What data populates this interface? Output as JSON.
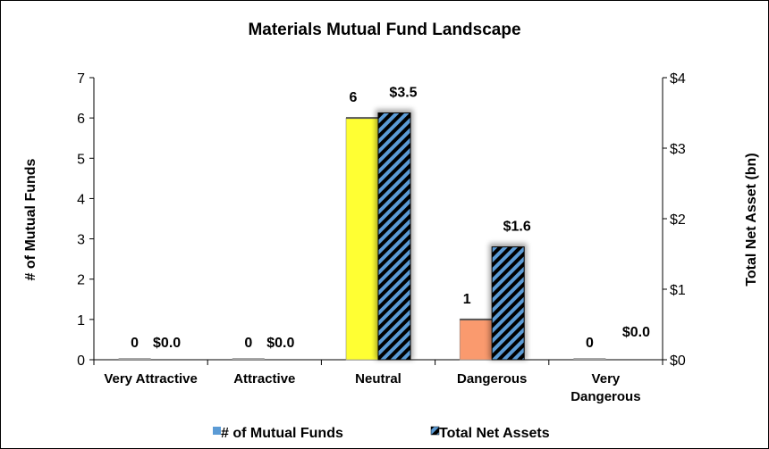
{
  "chart_data": {
    "type": "bar",
    "title": "Materials Mutual Fund Landscape",
    "categories": [
      "Very Attractive",
      "Attractive",
      "Neutral",
      "Dangerous",
      "Very Dangerous"
    ],
    "category_lines": [
      [
        "Very Attractive"
      ],
      [
        "Attractive"
      ],
      [
        "Neutral"
      ],
      [
        "Dangerous"
      ],
      [
        "Very",
        "Dangerous"
      ]
    ],
    "ylabel": "# of Mutual Funds",
    "y2label": "Total Net Asset (bn)",
    "ylim": [
      0,
      7
    ],
    "yticks": [
      "0",
      "1",
      "2",
      "3",
      "4",
      "5",
      "6",
      "7"
    ],
    "y2lim": [
      0,
      4
    ],
    "y2ticks": [
      "$0",
      "$1",
      "$2",
      "$3",
      "$4"
    ],
    "series": [
      {
        "name": "# of Mutual Funds",
        "axis": "left",
        "values": [
          0,
          0,
          6,
          1,
          0
        ],
        "labels": [
          "0",
          "0",
          "6",
          "1",
          "0"
        ],
        "colors": [
          "#a6a6a6",
          "#a6a6a6",
          "#ffff33",
          "#fa9a6e",
          "#a6a6a6"
        ]
      },
      {
        "name": "Total Net Assets",
        "axis": "right",
        "values": [
          0.0,
          0.0,
          3.5,
          1.6,
          0.0
        ],
        "labels": [
          "$0.0",
          "$0.0",
          "$3.5",
          "$1.6",
          "$0.0"
        ],
        "color": "#5b9bd5",
        "pattern": "diagonal-stripes"
      }
    ],
    "legend": {
      "position": "bottom",
      "items": [
        "# of Mutual Funds",
        "Total Net Assets"
      ],
      "swatch_colors": [
        "#5b9bd5",
        "#5b9bd5"
      ]
    },
    "grid": false
  }
}
